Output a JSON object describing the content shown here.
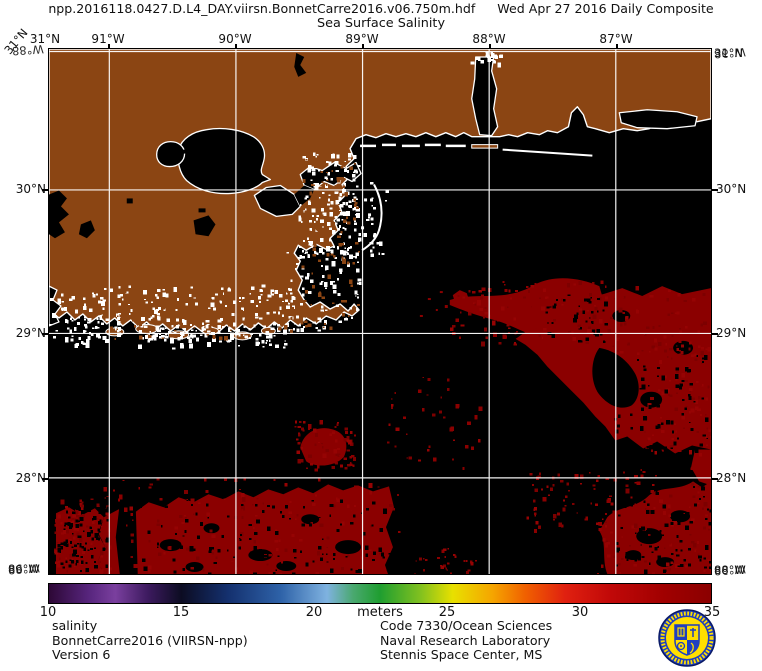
{
  "title": {
    "filename": "npp.2016118.0427.D.L4_DAY.viirsn.BonnetCarre2016.v06.750m.hdf",
    "composite": "Wed Apr 27 2016 Daily Composite",
    "subtitle": "Sea Surface Salinity"
  },
  "axes": {
    "top_labels": [
      "31°N",
      "91°W",
      "90°W",
      "89°W",
      "88°W",
      "87°W"
    ],
    "left_labels": [
      "30°N",
      "29°N",
      "28°N"
    ],
    "right_labels": [
      "30°N",
      "29°N",
      "28°N"
    ],
    "corners": {
      "top_left": [
        "31°N",
        "88°W"
      ],
      "top_right": [
        "31°N",
        "86°W"
      ],
      "bottom_left": [
        "86°W",
        "88°W"
      ],
      "bottom_right": [
        "88°W",
        "86°W"
      ]
    }
  },
  "colorbar": {
    "min": 10,
    "max": 35,
    "ticks": [
      "10",
      "15",
      "20",
      "25",
      "30",
      "35"
    ],
    "units_label": "meters"
  },
  "footer": {
    "left_lines": [
      "salinity",
      "BonnetCarre2016 (VIIRSN-npp)",
      "Version 6"
    ],
    "right_lines": [
      "Code 7330/Ocean Sciences",
      "Naval Research Laboratory",
      "Stennis Space Center, MS"
    ]
  },
  "colors": {
    "land": "#8b4513",
    "water": "#000000",
    "high_salinity": "#8b0000",
    "gridline": "#ffffff",
    "coastline": "#ffffff"
  },
  "logo": {
    "label": "NRL seal"
  }
}
